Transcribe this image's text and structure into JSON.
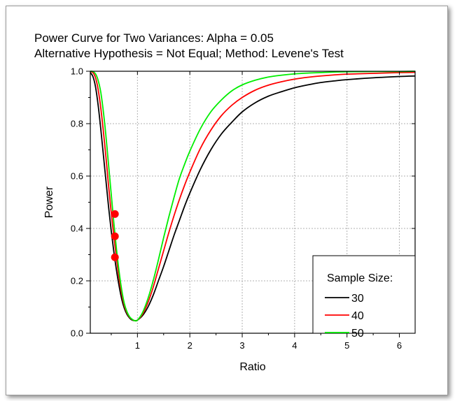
{
  "chart_data": {
    "type": "line",
    "title": "Power Curve for Two Variances: Alpha = 0.05",
    "subtitle": "Alternative Hypothesis = Not Equal; Method: Levene's Test",
    "xlabel": "Ratio",
    "ylabel": "Power",
    "xlim": [
      0.1,
      6.3
    ],
    "ylim": [
      0.0,
      1.0
    ],
    "x_ticks": [
      "1",
      "2",
      "3",
      "4",
      "5",
      "6"
    ],
    "y_ticks": [
      "0.0",
      "0.2",
      "0.4",
      "0.6",
      "0.8",
      "1.0"
    ],
    "grid": true,
    "legend_title": "Sample Size:",
    "legend_position": "bottom-right",
    "series": [
      {
        "name": "30",
        "color": "#000000",
        "x": [
          0.1,
          0.15,
          0.2,
          0.25,
          0.3,
          0.35,
          0.4,
          0.45,
          0.5,
          0.55,
          0.6,
          0.65,
          0.7,
          0.75,
          0.8,
          0.85,
          0.9,
          0.95,
          1.0,
          1.1,
          1.2,
          1.3,
          1.4,
          1.5,
          1.6,
          1.7,
          1.8,
          1.9,
          2.0,
          2.2,
          2.4,
          2.6,
          2.8,
          3.0,
          3.25,
          3.5,
          3.75,
          4.0,
          4.25,
          4.5,
          4.75,
          5.0,
          5.5,
          6.0,
          6.3
        ],
        "y": [
          0.995,
          0.98,
          0.94,
          0.87,
          0.78,
          0.68,
          0.58,
          0.48,
          0.39,
          0.31,
          0.24,
          0.18,
          0.13,
          0.095,
          0.072,
          0.058,
          0.05,
          0.048,
          0.05,
          0.068,
          0.1,
          0.145,
          0.2,
          0.255,
          0.315,
          0.375,
          0.43,
          0.485,
          0.535,
          0.625,
          0.7,
          0.76,
          0.805,
          0.845,
          0.88,
          0.905,
          0.922,
          0.937,
          0.948,
          0.957,
          0.963,
          0.968,
          0.975,
          0.98,
          0.982
        ]
      },
      {
        "name": "40",
        "color": "#ff0000",
        "x": [
          0.1,
          0.15,
          0.2,
          0.25,
          0.3,
          0.35,
          0.4,
          0.45,
          0.5,
          0.55,
          0.6,
          0.65,
          0.7,
          0.75,
          0.8,
          0.85,
          0.9,
          0.95,
          1.0,
          1.1,
          1.2,
          1.3,
          1.4,
          1.5,
          1.6,
          1.7,
          1.8,
          1.9,
          2.0,
          2.2,
          2.4,
          2.6,
          2.8,
          3.0,
          3.25,
          3.5,
          3.75,
          4.0,
          4.25,
          4.5,
          4.75,
          5.0,
          5.5,
          6.0,
          6.3
        ],
        "y": [
          0.999,
          0.995,
          0.975,
          0.93,
          0.86,
          0.77,
          0.67,
          0.56,
          0.46,
          0.37,
          0.285,
          0.21,
          0.15,
          0.105,
          0.078,
          0.061,
          0.052,
          0.048,
          0.05,
          0.074,
          0.117,
          0.175,
          0.245,
          0.315,
          0.385,
          0.45,
          0.51,
          0.565,
          0.615,
          0.705,
          0.775,
          0.83,
          0.87,
          0.9,
          0.928,
          0.947,
          0.96,
          0.97,
          0.977,
          0.982,
          0.986,
          0.989,
          0.992,
          0.995,
          0.996
        ]
      },
      {
        "name": "50",
        "color": "#00ee00",
        "x": [
          0.1,
          0.15,
          0.2,
          0.25,
          0.3,
          0.35,
          0.4,
          0.45,
          0.5,
          0.55,
          0.6,
          0.65,
          0.7,
          0.75,
          0.8,
          0.85,
          0.9,
          0.95,
          1.0,
          1.1,
          1.2,
          1.3,
          1.4,
          1.5,
          1.6,
          1.7,
          1.8,
          1.9,
          2.0,
          2.2,
          2.4,
          2.6,
          2.8,
          3.0,
          3.25,
          3.5,
          3.75,
          4.0,
          4.25,
          4.5,
          4.75,
          5.0,
          5.5,
          6.0,
          6.3
        ],
        "y": [
          1.0,
          0.999,
          0.99,
          0.965,
          0.92,
          0.845,
          0.75,
          0.64,
          0.53,
          0.42,
          0.32,
          0.235,
          0.165,
          0.113,
          0.082,
          0.063,
          0.053,
          0.048,
          0.05,
          0.08,
          0.132,
          0.2,
          0.28,
          0.365,
          0.445,
          0.52,
          0.59,
          0.645,
          0.695,
          0.78,
          0.845,
          0.89,
          0.925,
          0.948,
          0.966,
          0.978,
          0.985,
          0.99,
          0.993,
          0.995,
          0.997,
          0.998,
          0.999,
          0.999,
          1.0
        ]
      }
    ],
    "markers": {
      "color": "#ff0000",
      "points": [
        {
          "x": 0.57,
          "y": 0.455
        },
        {
          "x": 0.57,
          "y": 0.37
        },
        {
          "x": 0.57,
          "y": 0.29
        }
      ]
    }
  }
}
